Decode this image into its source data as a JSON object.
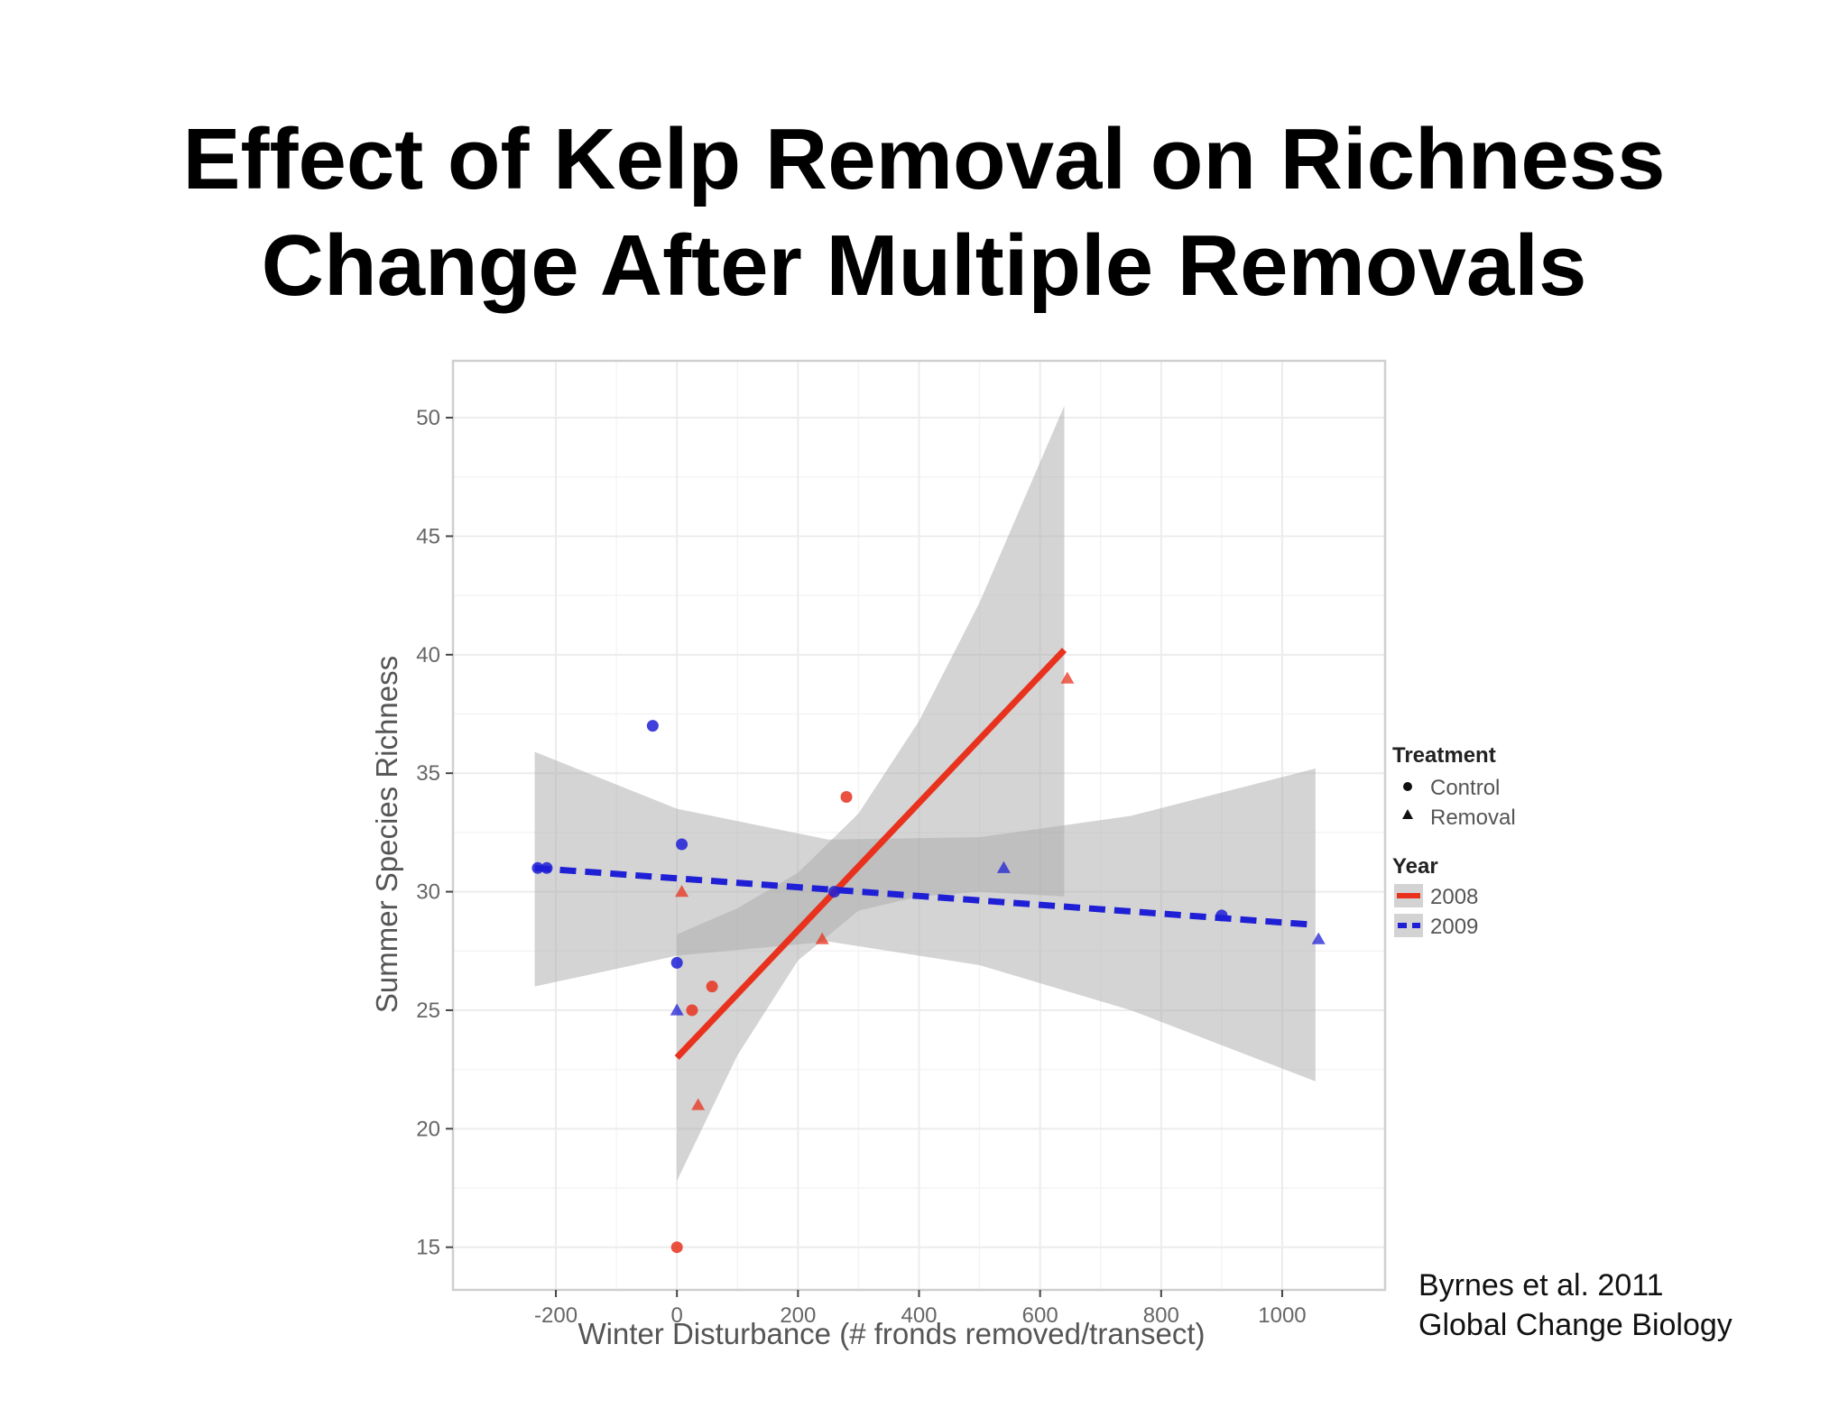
{
  "slide": {
    "title_line1": "Effect of Kelp Removal on Richness",
    "title_line2": "Change After Multiple Removals",
    "citation_line1": "Byrnes et al. 2011",
    "citation_line2": "Global Change Biology"
  },
  "chart_data": {
    "type": "scatter",
    "title": "",
    "xlabel": "Winter Disturbance (# fronds removed/transect)",
    "ylabel": "Summer Species Richness",
    "xlim": [
      -370,
      1170
    ],
    "ylim": [
      13.2,
      52.4
    ],
    "xticks": [
      -200,
      0,
      200,
      400,
      600,
      800,
      1000
    ],
    "xtick_labels": [
      "-200",
      "0",
      "200",
      "400",
      "600",
      "800",
      "1000"
    ],
    "yticks": [
      15,
      20,
      25,
      30,
      35,
      40,
      45,
      50
    ],
    "ytick_labels": [
      "15",
      "20",
      "25",
      "30",
      "35",
      "40",
      "45",
      "50"
    ],
    "grid": true,
    "colors": {
      "2008": "#e8321e",
      "2009": "#1f1fd6",
      "ribbon": "#a9a9a9",
      "panel_border": "#cfcfcf",
      "grid": "#ececec"
    },
    "legend": {
      "placement": "right",
      "treatment_title": "Treatment",
      "treatment_entries": [
        {
          "label": "Control",
          "shape": "circle"
        },
        {
          "label": "Removal",
          "shape": "triangle"
        }
      ],
      "year_title": "Year",
      "year_entries": [
        {
          "label": "2008",
          "color": "#e8321e",
          "linestyle": "solid"
        },
        {
          "label": "2009",
          "color": "#1f1fd6",
          "linestyle": "dashed"
        }
      ]
    },
    "points": [
      {
        "x": -230,
        "y": 31,
        "year": "2009",
        "treatment": "Control"
      },
      {
        "x": -215,
        "y": 31,
        "year": "2009",
        "treatment": "Control"
      },
      {
        "x": -40,
        "y": 37,
        "year": "2009",
        "treatment": "Control"
      },
      {
        "x": 8,
        "y": 32,
        "year": "2009",
        "treatment": "Control"
      },
      {
        "x": 0,
        "y": 27,
        "year": "2009",
        "treatment": "Control"
      },
      {
        "x": 0,
        "y": 25,
        "year": "2009",
        "treatment": "Removal"
      },
      {
        "x": 260,
        "y": 30,
        "year": "2009",
        "treatment": "Control"
      },
      {
        "x": 540,
        "y": 31,
        "year": "2009",
        "treatment": "Removal"
      },
      {
        "x": 900,
        "y": 29,
        "year": "2009",
        "treatment": "Control"
      },
      {
        "x": 1060,
        "y": 28,
        "year": "2009",
        "treatment": "Removal"
      },
      {
        "x": 0,
        "y": 15,
        "year": "2008",
        "treatment": "Control"
      },
      {
        "x": 25,
        "y": 25,
        "year": "2008",
        "treatment": "Control"
      },
      {
        "x": 58,
        "y": 26,
        "year": "2008",
        "treatment": "Control"
      },
      {
        "x": 35,
        "y": 21,
        "year": "2008",
        "treatment": "Removal"
      },
      {
        "x": 8,
        "y": 30,
        "year": "2008",
        "treatment": "Removal"
      },
      {
        "x": 240,
        "y": 28,
        "year": "2008",
        "treatment": "Removal"
      },
      {
        "x": 280,
        "y": 34,
        "year": "2008",
        "treatment": "Control"
      },
      {
        "x": 645,
        "y": 39,
        "year": "2008",
        "treatment": "Removal"
      }
    ],
    "fits": [
      {
        "year": "2008",
        "line": [
          [
            0,
            23
          ],
          [
            640,
            40.2
          ]
        ],
        "ribbon_upper": [
          [
            0,
            28.2
          ],
          [
            100,
            29.3
          ],
          [
            200,
            30.8
          ],
          [
            300,
            33.3
          ],
          [
            400,
            37.2
          ],
          [
            500,
            42.2
          ],
          [
            640,
            50.5
          ]
        ],
        "ribbon_lower": [
          [
            0,
            17.8
          ],
          [
            100,
            23.1
          ],
          [
            200,
            27.1
          ],
          [
            300,
            29.2
          ],
          [
            400,
            29.8
          ],
          [
            500,
            30.0
          ],
          [
            640,
            29.8
          ]
        ]
      },
      {
        "year": "2009",
        "line": [
          [
            -235,
            31
          ],
          [
            1055,
            28.6
          ]
        ],
        "ribbon_upper": [
          [
            -235,
            35.9
          ],
          [
            0,
            33.5
          ],
          [
            250,
            32.2
          ],
          [
            500,
            32.3
          ],
          [
            750,
            33.2
          ],
          [
            1055,
            35.2
          ]
        ],
        "ribbon_lower": [
          [
            -235,
            26.0
          ],
          [
            0,
            27.3
          ],
          [
            250,
            27.9
          ],
          [
            500,
            26.9
          ],
          [
            750,
            25.0
          ],
          [
            1055,
            22.0
          ]
        ]
      }
    ]
  }
}
